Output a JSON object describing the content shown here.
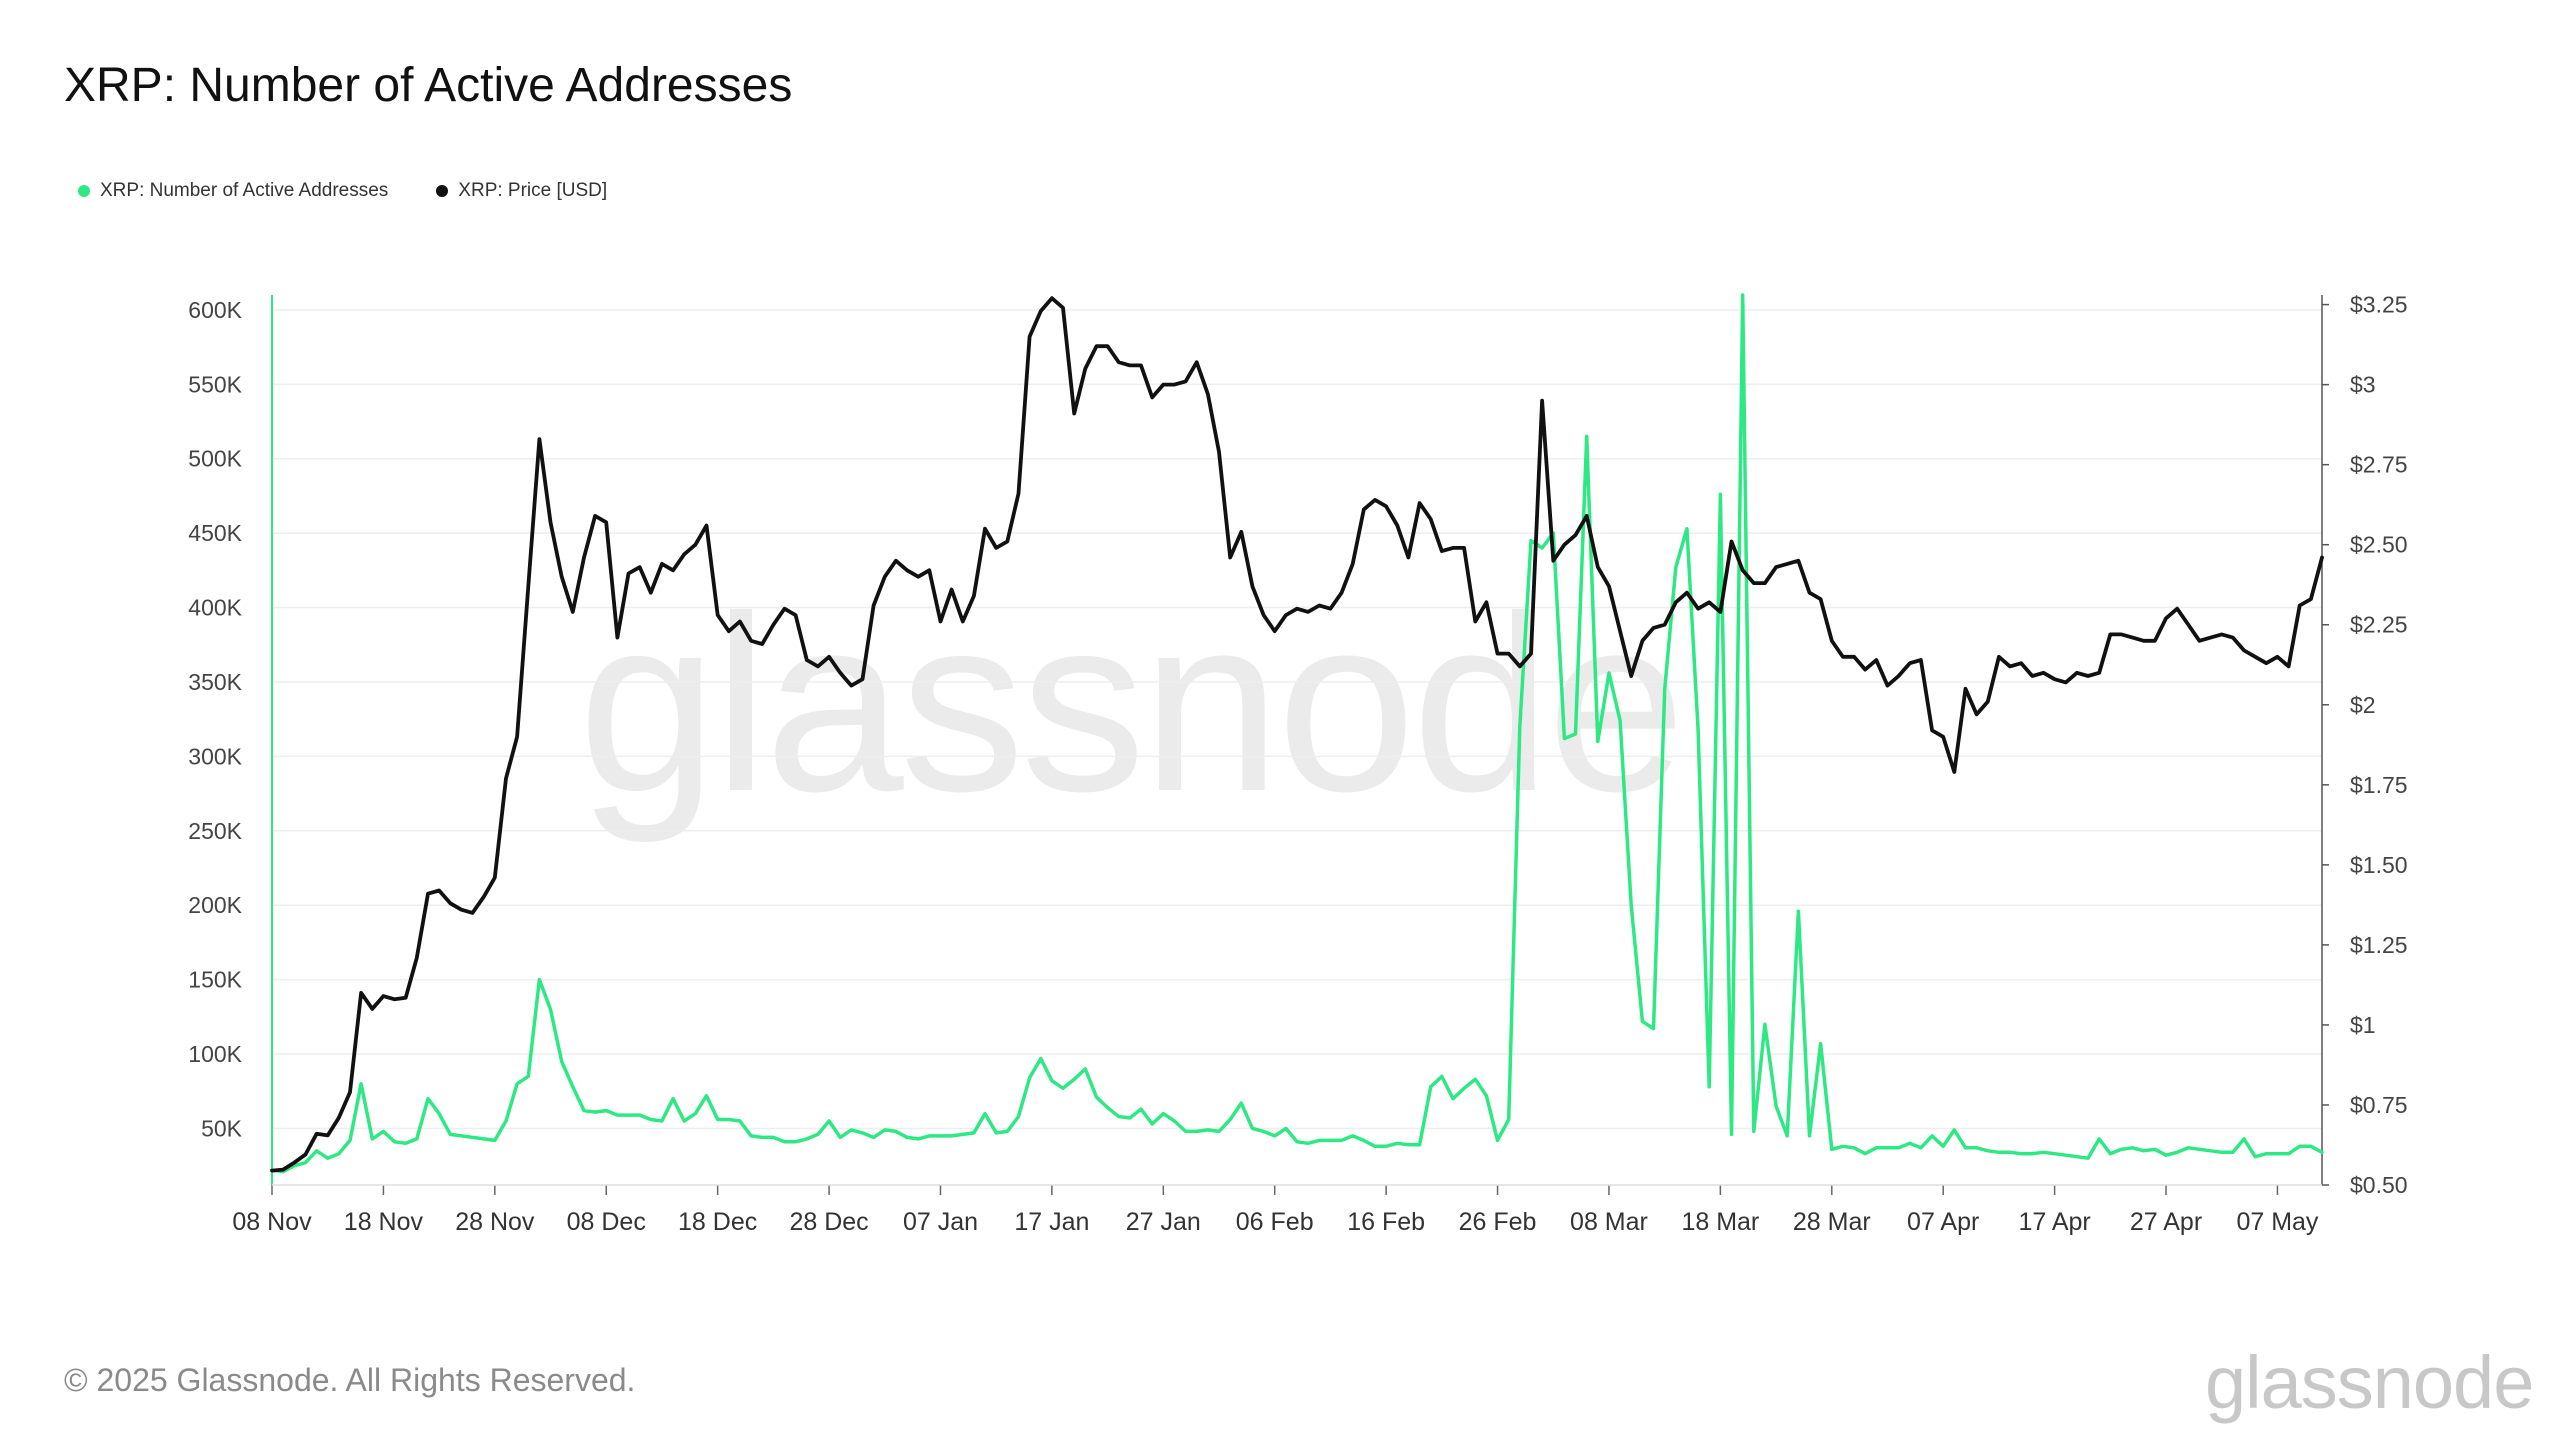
{
  "title": "XRP: Number of Active Addresses",
  "footer": {
    "copyright": "© 2025 Glassnode. All Rights Reserved.",
    "brand": "glassnode",
    "watermark": "glassnode"
  },
  "colors": {
    "addresses": "#2ee884",
    "price": "#111111",
    "grid": "#eeeeee",
    "axis": "#333333"
  },
  "chart_data": {
    "type": "line",
    "title": "XRP: Number of Active Addresses",
    "legend": {
      "placement": "top-left",
      "entries": [
        "XRP: Number of Active Addresses",
        "XRP: Price [USD]"
      ]
    },
    "grid": true,
    "x_ticks": [
      "08 Nov",
      "18 Nov",
      "28 Nov",
      "08 Dec",
      "18 Dec",
      "28 Dec",
      "07 Jan",
      "17 Jan",
      "27 Jan",
      "06 Feb",
      "16 Feb",
      "26 Feb",
      "08 Mar",
      "18 Mar",
      "28 Mar",
      "07 Apr",
      "17 Apr",
      "27 Apr",
      "07 May"
    ],
    "x_range": [
      "2024-11-08",
      "2025-05-11"
    ],
    "y_left": {
      "ticks": [
        "50K",
        "100K",
        "150K",
        "200K",
        "250K",
        "300K",
        "350K",
        "400K",
        "450K",
        "500K",
        "550K",
        "600K"
      ],
      "range": [
        12000,
        610000
      ]
    },
    "y_right": {
      "ticks": [
        "$0.50",
        "$0.75",
        "$1",
        "$1.25",
        "$1.50",
        "$1.75",
        "$2",
        "$2.25",
        "$2.50",
        "$2.75",
        "$3",
        "$3.25"
      ],
      "range": [
        0.5,
        3.28
      ]
    },
    "series": [
      {
        "name": "XRP: Number of Active Addresses",
        "axis": "left",
        "start_date": "2024-11-08",
        "values": [
          22000,
          21000,
          25000,
          27000,
          35000,
          30000,
          33000,
          42000,
          80000,
          43000,
          48000,
          41000,
          40000,
          43000,
          70000,
          60000,
          46000,
          45000,
          44000,
          43000,
          42000,
          55000,
          80000,
          85000,
          150000,
          130000,
          95000,
          78000,
          62000,
          61000,
          62000,
          59000,
          59000,
          59000,
          56000,
          55000,
          70000,
          55000,
          60000,
          72000,
          56000,
          56000,
          55000,
          45000,
          44000,
          44000,
          41000,
          41000,
          43000,
          46000,
          55000,
          44000,
          49000,
          47000,
          44000,
          49000,
          48000,
          44000,
          43000,
          45000,
          45000,
          45000,
          46000,
          47000,
          60000,
          47000,
          48000,
          58000,
          84000,
          97000,
          82000,
          77000,
          83000,
          90000,
          71000,
          64000,
          58000,
          57000,
          63000,
          53000,
          60000,
          55000,
          48000,
          48000,
          49000,
          48000,
          56000,
          67000,
          50000,
          48000,
          45000,
          50000,
          41000,
          40000,
          42000,
          42000,
          42000,
          45000,
          42000,
          38000,
          38000,
          40000,
          39000,
          39000,
          78000,
          85000,
          70000,
          77000,
          83000,
          72000,
          42000,
          56000,
          320000,
          445000,
          440000,
          450000,
          312000,
          315000,
          515000,
          310000,
          356000,
          324000,
          200000,
          122000,
          117000,
          345000,
          427000,
          453000,
          318000,
          78000,
          476000,
          46000,
          610000,
          48000,
          120000,
          65000,
          45000,
          196000,
          45000,
          107000,
          36000,
          38000,
          37000,
          33000,
          37000,
          37000,
          37000,
          40000,
          37000,
          45000,
          38000,
          49000,
          37000,
          37000,
          35000,
          34000,
          34000,
          33000,
          33000,
          34000,
          33000,
          32000,
          31000,
          30000,
          43000,
          33000,
          36000,
          37000,
          35000,
          36000,
          32000,
          34000,
          37000,
          36000,
          35000,
          34000,
          34000,
          43000,
          31000,
          33000,
          33000,
          33000,
          38000,
          38000,
          34000
        ]
      },
      {
        "name": "XRP: Price [USD]",
        "axis": "right",
        "start_date": "2024-11-08",
        "values": [
          0.545,
          0.548,
          0.57,
          0.595,
          0.66,
          0.655,
          0.71,
          0.79,
          1.1,
          1.05,
          1.09,
          1.08,
          1.085,
          1.21,
          1.41,
          1.42,
          1.38,
          1.36,
          1.35,
          1.4,
          1.46,
          1.77,
          1.9,
          2.37,
          2.83,
          2.57,
          2.4,
          2.29,
          2.46,
          2.59,
          2.57,
          2.21,
          2.41,
          2.43,
          2.35,
          2.44,
          2.42,
          2.47,
          2.5,
          2.56,
          2.28,
          2.23,
          2.26,
          2.2,
          2.19,
          2.25,
          2.3,
          2.28,
          2.14,
          2.12,
          2.15,
          2.1,
          2.06,
          2.08,
          2.31,
          2.4,
          2.45,
          2.42,
          2.4,
          2.42,
          2.26,
          2.36,
          2.26,
          2.34,
          2.55,
          2.49,
          2.51,
          2.66,
          3.15,
          3.23,
          3.27,
          3.24,
          2.91,
          3.05,
          3.12,
          3.12,
          3.07,
          3.06,
          3.06,
          2.96,
          3.0,
          3.0,
          3.01,
          3.07,
          2.97,
          2.79,
          2.46,
          2.54,
          2.37,
          2.28,
          2.23,
          2.28,
          2.3,
          2.29,
          2.31,
          2.3,
          2.35,
          2.44,
          2.61,
          2.64,
          2.62,
          2.56,
          2.46,
          2.63,
          2.58,
          2.48,
          2.49,
          2.49,
          2.26,
          2.32,
          2.16,
          2.16,
          2.12,
          2.16,
          2.95,
          2.45,
          2.5,
          2.53,
          2.59,
          2.43,
          2.37,
          2.23,
          2.09,
          2.2,
          2.24,
          2.25,
          2.32,
          2.35,
          2.3,
          2.32,
          2.29,
          2.51,
          2.42,
          2.38,
          2.38,
          2.43,
          2.44,
          2.45,
          2.35,
          2.33,
          2.2,
          2.15,
          2.15,
          2.11,
          2.14,
          2.06,
          2.09,
          2.13,
          2.14,
          1.92,
          1.9,
          1.79,
          2.05,
          1.97,
          2.01,
          2.15,
          2.12,
          2.13,
          2.09,
          2.1,
          2.08,
          2.07,
          2.1,
          2.09,
          2.1,
          2.22,
          2.22,
          2.21,
          2.2,
          2.2,
          2.27,
          2.3,
          2.25,
          2.2,
          2.21,
          2.22,
          2.21,
          2.17,
          2.15,
          2.13,
          2.15,
          2.12,
          2.31,
          2.33,
          2.46
        ]
      }
    ]
  }
}
